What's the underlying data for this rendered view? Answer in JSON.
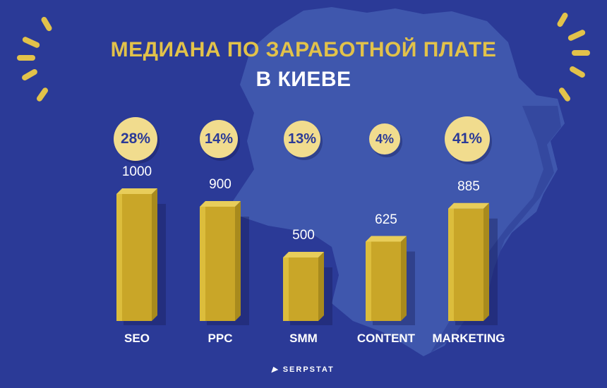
{
  "title_line1": "МЕДИАНА ПО ЗАРАБОТНОЙ ПЛАТЕ",
  "title_line2": "В КИЕВЕ",
  "brand": "SERPSTAT",
  "colors": {
    "background": "#2b3a97",
    "map": "#3f57ad",
    "bar": "#c9a628",
    "bubble": "#f1dc8e",
    "title_accent": "#e2c24a"
  },
  "chart_data": {
    "type": "bar",
    "categories": [
      "SEO",
      "PPC",
      "SMM",
      "CONTENT",
      "MARKETING"
    ],
    "values": [
      1000,
      900,
      500,
      625,
      885
    ],
    "value_labels": [
      "1000",
      "900",
      "500",
      "625",
      "885"
    ],
    "percentages": [
      "28%",
      "14%",
      "13%",
      "4%",
      "41%"
    ],
    "title": "МЕДИАНА ПО ЗАРАБОТНОЙ ПЛАТЕ В КИЕВЕ",
    "xlabel": "",
    "ylabel": "",
    "grid": false,
    "legend": "none"
  }
}
